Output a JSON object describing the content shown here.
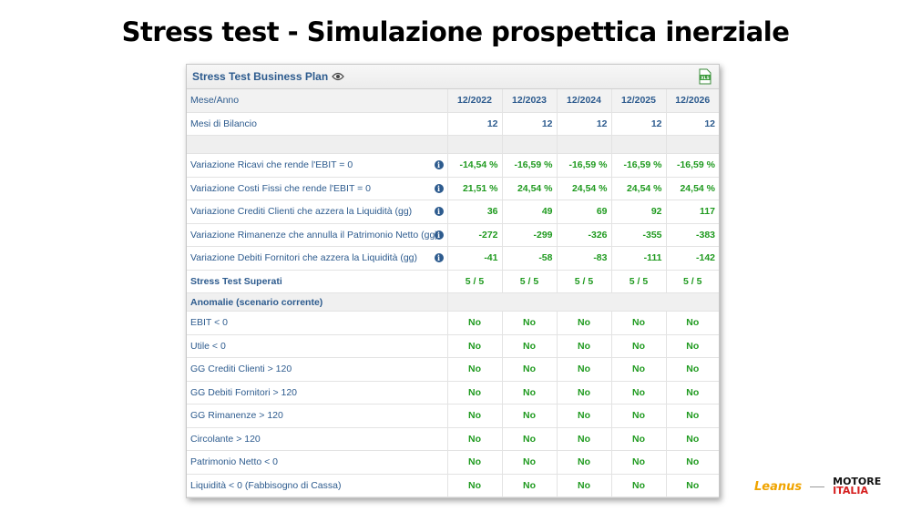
{
  "slide": {
    "title": "Stress test - Simulazione prospettica inerziale"
  },
  "panel": {
    "title": "Stress Test Business Plan",
    "icons": [
      "eye-icon",
      "xls-icon"
    ]
  },
  "header_row": {
    "label": "Mese/Anno",
    "years": [
      "12/2022",
      "12/2023",
      "12/2024",
      "12/2025",
      "12/2026"
    ]
  },
  "months_row": {
    "label": "Mesi di Bilancio",
    "values": [
      "12",
      "12",
      "12",
      "12",
      "12"
    ]
  },
  "variations": [
    {
      "label": "Variazione Ricavi che rende l'EBIT = 0",
      "values": [
        "-14,54 %",
        "-16,59 %",
        "-16,59 %",
        "-16,59 %",
        "-16,59 %"
      ]
    },
    {
      "label": "Variazione Costi Fissi che rende l'EBIT = 0",
      "values": [
        "21,51 %",
        "24,54 %",
        "24,54 %",
        "24,54 %",
        "24,54 %"
      ]
    },
    {
      "label": "Variazione Crediti Clienti che azzera la Liquidità (gg)",
      "values": [
        "36",
        "49",
        "69",
        "92",
        "117"
      ]
    },
    {
      "label": "Variazione Rimanenze che annulla il Patrimonio Netto (gg)",
      "values": [
        "-272",
        "-299",
        "-326",
        "-355",
        "-383"
      ]
    },
    {
      "label": "Variazione Debiti Fornitori che azzera la Liquidità (gg)",
      "values": [
        "-41",
        "-58",
        "-83",
        "-111",
        "-142"
      ]
    }
  ],
  "stress_row": {
    "label": "Stress Test Superati",
    "values": [
      "5 / 5",
      "5 / 5",
      "5 / 5",
      "5 / 5",
      "5 / 5"
    ]
  },
  "anomalies_section": {
    "label": "Anomalie (scenario corrente)"
  },
  "anomalies": [
    {
      "label": "EBIT < 0",
      "values": [
        "No",
        "No",
        "No",
        "No",
        "No"
      ]
    },
    {
      "label": "Utile < 0",
      "values": [
        "No",
        "No",
        "No",
        "No",
        "No"
      ]
    },
    {
      "label": "GG Crediti Clienti > 120",
      "values": [
        "No",
        "No",
        "No",
        "No",
        "No"
      ]
    },
    {
      "label": "GG Debiti Fornitori > 120",
      "values": [
        "No",
        "No",
        "No",
        "No",
        "No"
      ]
    },
    {
      "label": "GG Rimanenze > 120",
      "values": [
        "No",
        "No",
        "No",
        "No",
        "No"
      ]
    },
    {
      "label": "Circolante > 120",
      "values": [
        "No",
        "No",
        "No",
        "No",
        "No"
      ]
    },
    {
      "label": "Patrimonio Netto < 0",
      "values": [
        "No",
        "No",
        "No",
        "No",
        "No"
      ]
    },
    {
      "label": "Liquidità < 0 (Fabbisogno di Cassa)",
      "values": [
        "No",
        "No",
        "No",
        "No",
        "No"
      ]
    }
  ],
  "logos": {
    "leanus": "Leanus",
    "motore_line1": "MOTORE",
    "motore_line2": "ITALIA"
  },
  "colors": {
    "blue": "#2d5b8e",
    "green": "#1f9a1f",
    "leanus_orange": "#f0a400",
    "motore_red": "#d62020"
  }
}
